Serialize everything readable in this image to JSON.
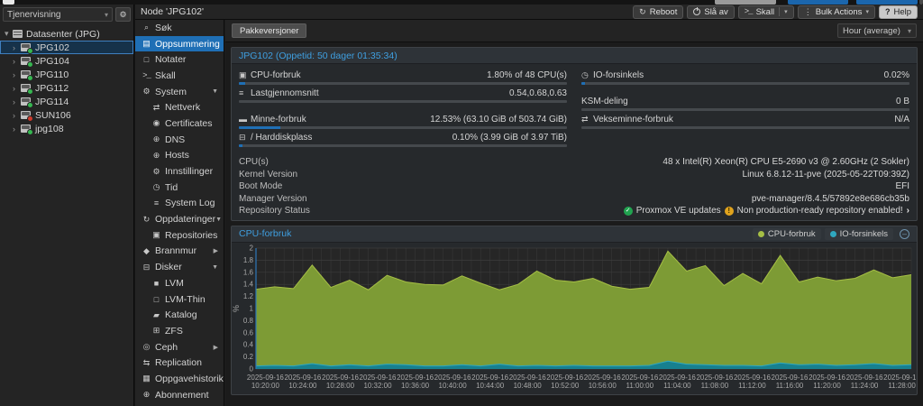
{
  "colors": {
    "accent_blue": "#1f6fb5",
    "title_blue": "#3f9fe0",
    "cpu_green_fill": "#7d9b35",
    "cpu_green_line": "#a6bf45",
    "io_teal_fill": "#17808f",
    "io_teal_line": "#2fa8c0",
    "status_ok_green": "#21a350",
    "status_warn_yellow": "#e0a31d",
    "status_offline_red": "#cf3a2b",
    "status_online_green": "#35b750"
  },
  "tree_panel": {
    "view_select": {
      "value": "Tjenervisning"
    },
    "root": {
      "label": "Datasenter (JPG)"
    },
    "nodes": [
      {
        "label": "JPG102",
        "status": "online",
        "selected": true
      },
      {
        "label": "JPG104",
        "status": "online",
        "selected": false
      },
      {
        "label": "JPG110",
        "status": "online",
        "selected": false
      },
      {
        "label": "JPG112",
        "status": "online",
        "selected": false
      },
      {
        "label": "JPG114",
        "status": "online",
        "selected": false
      },
      {
        "label": "SUN106",
        "status": "offline",
        "selected": false
      },
      {
        "label": "jpg108",
        "status": "online",
        "selected": false
      }
    ]
  },
  "node_header": {
    "title": "Node 'JPG102'",
    "buttons": [
      {
        "label": "Reboot",
        "icon": "reboot-icon"
      },
      {
        "label": "Slå av",
        "icon": "power-icon"
      },
      {
        "label": "Skall",
        "icon": "shell-icon",
        "split_caret": true
      },
      {
        "label": "Bulk Actions",
        "icon": "bulk-actions-icon",
        "caret": true
      },
      {
        "label": "Help",
        "icon": "help-icon",
        "variant": "light"
      }
    ]
  },
  "menu": {
    "items": [
      {
        "label": "Søk",
        "icon": "search",
        "indent": 0
      },
      {
        "label": "Oppsummering",
        "icon": "book",
        "indent": 0,
        "selected": true
      },
      {
        "label": "Notater",
        "icon": "note",
        "indent": 0
      },
      {
        "label": "Skall",
        "icon": "shell",
        "indent": 0
      },
      {
        "label": "System",
        "icon": "gears",
        "indent": 0,
        "expand": "open"
      },
      {
        "label": "Nettverk",
        "icon": "network",
        "indent": 1
      },
      {
        "label": "Certificates",
        "icon": "certificate",
        "indent": 1
      },
      {
        "label": "DNS",
        "icon": "globe",
        "indent": 1
      },
      {
        "label": "Hosts",
        "icon": "globe",
        "indent": 1
      },
      {
        "label": "Innstillinger",
        "icon": "gear",
        "indent": 1
      },
      {
        "label": "Tid",
        "icon": "clock",
        "indent": 1
      },
      {
        "label": "System Log",
        "icon": "list",
        "indent": 1
      },
      {
        "label": "Oppdateringer",
        "icon": "refresh",
        "indent": 0,
        "expand": "open"
      },
      {
        "label": "Repositories",
        "icon": "repositories",
        "indent": 1
      },
      {
        "label": "Brannmur",
        "icon": "shield",
        "indent": 0,
        "expand": "closed"
      },
      {
        "label": "Disker",
        "icon": "disk",
        "indent": 0,
        "expand": "open"
      },
      {
        "label": "LVM",
        "icon": "square-filled",
        "indent": 1
      },
      {
        "label": "LVM-Thin",
        "icon": "square-outline",
        "indent": 1
      },
      {
        "label": "Katalog",
        "icon": "folder",
        "indent": 1
      },
      {
        "label": "ZFS",
        "icon": "grid",
        "indent": 1
      },
      {
        "label": "Ceph",
        "icon": "ceph",
        "indent": 0,
        "expand": "closed"
      },
      {
        "label": "Replication",
        "icon": "replication",
        "indent": 0
      },
      {
        "label": "Oppgavehistorikk",
        "icon": "tasks",
        "indent": 0
      },
      {
        "label": "Abonnement",
        "icon": "subscription",
        "indent": 0
      }
    ]
  },
  "toolbar": {
    "package_versions": "Pakkeversjoner",
    "time_range": "Hour (average)"
  },
  "summary": {
    "title": "JPG102 (Oppetid: 50 dager 01:35:34)",
    "left_stats": [
      {
        "icon": "cpu",
        "label": "CPU-forbruk",
        "value": "1.80% of 48 CPU(s)",
        "pct": 1.8
      },
      {
        "icon": "server",
        "label": "Lastgjennomsnitt",
        "value": "0.54,0.68,0.63",
        "pct": null
      },
      {
        "spacer": true
      },
      {
        "icon": "memory",
        "label": "Minne-forbruk",
        "value": "12.53% (63.10 GiB of 503.74 GiB)",
        "pct": 12.53
      },
      {
        "icon": "hdd",
        "label": "/ Harddiskplass",
        "value": "0.10% (3.99 GiB of 3.97 TiB)",
        "pct": 0.1
      }
    ],
    "right_stats": [
      {
        "icon": "clock",
        "label": "IO-forsinkels",
        "value": "0.02%",
        "pct": 0.02
      },
      {
        "spacer": true
      },
      {
        "icon": null,
        "label": "KSM-deling",
        "value": "0 B",
        "pct": null
      },
      {
        "icon": "swap",
        "label": "Vekseminne-forbruk",
        "value": "N/A",
        "pct": null
      }
    ],
    "info_rows": [
      {
        "label": "CPU(s)",
        "value": "48 x Intel(R) Xeon(R) CPU E5-2690 v3 @ 2.60GHz (2 Sokler)"
      },
      {
        "label": "Kernel Version",
        "value": "Linux 6.8.12-11-pve (2025-05-22T09:39Z)"
      },
      {
        "label": "Boot Mode",
        "value": "EFI"
      },
      {
        "label": "Manager Version",
        "value": "pve-manager/8.4.5/57892e8e686cb35b"
      },
      {
        "label": "Repository Status",
        "status_parts": [
          {
            "icon": "check-circle",
            "text": "Proxmox VE updates"
          },
          {
            "icon": "warning-circle",
            "text": "Non production-ready repository enabled!"
          },
          {
            "icon": "chevron-right",
            "text": ""
          }
        ]
      }
    ]
  },
  "chart_data": {
    "type": "area",
    "title": "CPU-forbruk",
    "ylabel": "%",
    "ylim": [
      0,
      2
    ],
    "y_tick_step": 0.2,
    "grid": true,
    "legend_position": "top-right",
    "x_span_minutes": 70,
    "x_start_label": "2025-09-16 10:19:00",
    "x_ticks": [
      {
        "minute": 1,
        "date": "2025-09-16",
        "time": "10:20:00"
      },
      {
        "minute": 5,
        "date": "2025-09-16",
        "time": "10:24:00"
      },
      {
        "minute": 9,
        "date": "2025-09-16",
        "time": "10:28:00"
      },
      {
        "minute": 13,
        "date": "2025-09-16",
        "time": "10:32:00"
      },
      {
        "minute": 17,
        "date": "2025-09-16",
        "time": "10:36:00"
      },
      {
        "minute": 21,
        "date": "2025-09-16",
        "time": "10:40:00"
      },
      {
        "minute": 25,
        "date": "2025-09-16",
        "time": "10:44:00"
      },
      {
        "minute": 29,
        "date": "2025-09-16",
        "time": "10:48:00"
      },
      {
        "minute": 33,
        "date": "2025-09-16",
        "time": "10:52:00"
      },
      {
        "minute": 37,
        "date": "2025-09-16",
        "time": "10:56:00"
      },
      {
        "minute": 41,
        "date": "2025-09-16",
        "time": "11:00:00"
      },
      {
        "minute": 45,
        "date": "2025-09-16",
        "time": "11:04:00"
      },
      {
        "minute": 49,
        "date": "2025-09-16",
        "time": "11:08:00"
      },
      {
        "minute": 53,
        "date": "2025-09-16",
        "time": "11:12:00"
      },
      {
        "minute": 57,
        "date": "2025-09-16",
        "time": "11:16:00"
      },
      {
        "minute": 61,
        "date": "2025-09-16",
        "time": "11:20:00"
      },
      {
        "minute": 65,
        "date": "2025-09-16",
        "time": "11:24:00"
      },
      {
        "minute": 69,
        "date": "2025-09-16",
        "time": "11:28:00"
      }
    ],
    "series": [
      {
        "name": "CPU-forbruk",
        "line_color": "#a6bf45",
        "fill_color": "#7d9b35",
        "x_minutes": [
          0,
          2,
          4,
          6,
          8,
          10,
          12,
          14,
          16,
          18,
          20,
          22,
          24,
          26,
          28,
          30,
          32,
          34,
          36,
          38,
          40,
          42,
          44,
          46,
          48,
          50,
          52,
          54,
          56,
          58,
          60,
          62,
          64,
          66,
          68,
          70
        ],
        "values": [
          1.32,
          1.36,
          1.33,
          1.72,
          1.35,
          1.47,
          1.31,
          1.55,
          1.44,
          1.4,
          1.39,
          1.54,
          1.42,
          1.31,
          1.4,
          1.62,
          1.47,
          1.44,
          1.5,
          1.37,
          1.32,
          1.35,
          1.95,
          1.62,
          1.71,
          1.38,
          1.58,
          1.41,
          1.88,
          1.44,
          1.52,
          1.46,
          1.5,
          1.64,
          1.51,
          1.56
        ]
      },
      {
        "name": "IO-forsinkels",
        "line_color": "#2fa8c0",
        "fill_color": "#17808f",
        "x_minutes": [
          0,
          2,
          4,
          6,
          8,
          10,
          12,
          14,
          16,
          18,
          20,
          22,
          24,
          26,
          28,
          30,
          32,
          34,
          36,
          38,
          40,
          42,
          44,
          46,
          48,
          50,
          52,
          54,
          56,
          58,
          60,
          62,
          64,
          66,
          68,
          70
        ],
        "values": [
          0.05,
          0.06,
          0.05,
          0.09,
          0.05,
          0.07,
          0.05,
          0.08,
          0.07,
          0.05,
          0.05,
          0.07,
          0.05,
          0.08,
          0.05,
          0.06,
          0.05,
          0.06,
          0.05,
          0.05,
          0.05,
          0.06,
          0.13,
          0.08,
          0.07,
          0.06,
          0.06,
          0.05,
          0.1,
          0.07,
          0.08,
          0.06,
          0.07,
          0.09,
          0.06,
          0.07
        ]
      }
    ]
  }
}
